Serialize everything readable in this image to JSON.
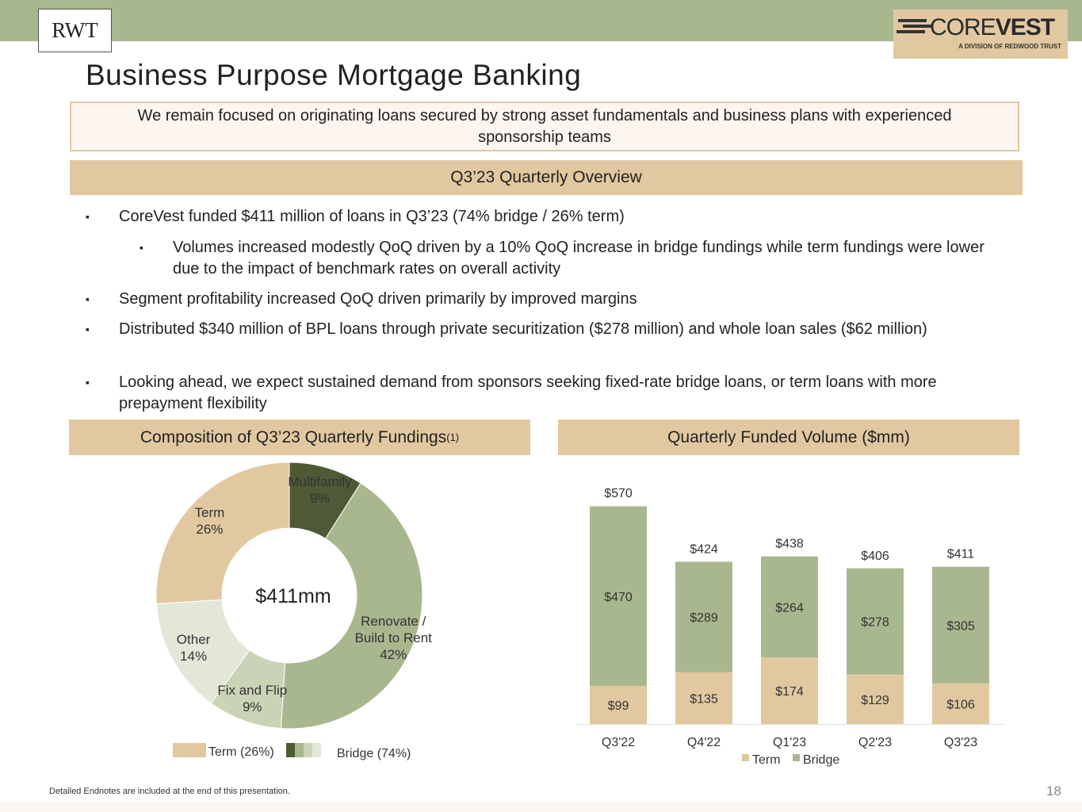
{
  "header": {
    "logo_left": "RWT",
    "logo_right": "CORE",
    "logo_right_bold": "VEST",
    "logo_right_sub": "A DIVISION OF REDWOOD TRUST",
    "title": "Business Purpose Mortgage Banking"
  },
  "banner": "We remain focused on originating loans secured by strong asset fundamentals and business plans with experienced sponsorship teams",
  "overview": {
    "title": "Q3’23 Quarterly Overview",
    "bullets": [
      {
        "level": 1,
        "text": "CoreVest funded $411 million of loans in Q3’23 (74% bridge / 26% term)"
      },
      {
        "level": 2,
        "text": "Volumes increased modestly QoQ driven by a 10% QoQ increase in bridge fundings while term fundings were lower due to the impact of benchmark rates on overall activity"
      },
      {
        "level": 1,
        "text": "Segment profitability increased QoQ driven primarily by improved margins"
      },
      {
        "level": 1,
        "text": "Distributed $340 million of BPL loans through private securitization ($278 million) and whole loan sales ($62 million)"
      },
      {
        "level": 1,
        "text": "Looking ahead, we expect sustained demand from sponsors seeking fixed-rate bridge loans, or term loans with more prepayment flexibility"
      }
    ]
  },
  "chart_data": [
    {
      "type": "donut",
      "title": "Composition of Q3’23 Quarterly Fundings",
      "title_note": "(1)",
      "center_label": "$411mm",
      "categories": [
        "Multifamily",
        "Renovate / Build to Rent",
        "Fix and Flip",
        "Other",
        "Term"
      ],
      "values": [
        9,
        42,
        9,
        14,
        26
      ],
      "value_labels": [
        "9%",
        "42%",
        "9%",
        "14%",
        "26%"
      ],
      "colors": [
        "#4d5a35",
        "#a9b78e",
        "#cbd3b7",
        "#e3e7d8",
        "#e2c8a0"
      ],
      "legend": [
        "Term (26%)",
        "Bridge (74%)"
      ]
    },
    {
      "type": "bar",
      "stacked": true,
      "title": "Quarterly Funded Volume ($mm)",
      "categories": [
        "Q3'22",
        "Q4'22",
        "Q1'23",
        "Q2'23",
        "Q3'23"
      ],
      "series": [
        {
          "name": "Term",
          "color": "#e2c8a0",
          "values": [
            99,
            135,
            174,
            129,
            106
          ],
          "value_labels": [
            "$99",
            "$135",
            "$174",
            "$129",
            "$106"
          ]
        },
        {
          "name": "Bridge",
          "color": "#a9b78e",
          "values": [
            470,
            289,
            264,
            278,
            305
          ],
          "value_labels": [
            "$470",
            "$289",
            "$264",
            "$278",
            "$305"
          ]
        }
      ],
      "totals": [
        570,
        424,
        438,
        406,
        411
      ],
      "total_labels": [
        "$570",
        "$424",
        "$438",
        "$406",
        "$411"
      ]
    }
  ],
  "footer": {
    "note": "Detailed Endnotes are included at the end of this presentation.",
    "page": 18
  }
}
